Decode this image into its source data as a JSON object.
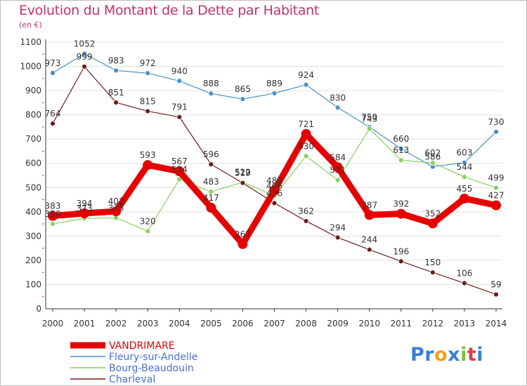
{
  "title": "Evolution du Montant de la Dette par Habitant",
  "unit": "(en €)",
  "logo": {
    "parts": [
      "Pr",
      "o",
      "x",
      "i",
      "t",
      "i"
    ],
    "colors": [
      "#3a7fd5",
      "#f0a020",
      "#3a7fd5",
      "#7cc242",
      "#e04040",
      "#3a7fd5"
    ]
  },
  "colors": {
    "axis": "#333333",
    "grid": "#e0e0e0",
    "title": "#c0336b"
  },
  "chart_data": {
    "type": "line",
    "title": "Evolution du Montant de la Dette par Habitant",
    "ylabel": "(en €)",
    "x": [
      "2000",
      "2001",
      "2002",
      "2003",
      "2004",
      "2005",
      "2006",
      "2007",
      "2008",
      "2009",
      "2010",
      "2011",
      "2012",
      "2013",
      "2014"
    ],
    "ylim": [
      0,
      1100
    ],
    "yticks": [
      0,
      100,
      200,
      300,
      400,
      500,
      600,
      700,
      800,
      900,
      1000,
      1100
    ],
    "grid": "horizontal",
    "legend": "bottom-left",
    "series": [
      {
        "name": "VANDRIMARE",
        "color": "#e60000",
        "width": 9,
        "values": [
          383,
          394,
          402,
          593,
          567,
          417,
          267,
          488,
          721,
          584,
          387,
          392,
          352,
          455,
          427
        ]
      },
      {
        "name": "Fleury-sur-Andelle",
        "color": "#4a90c8",
        "width": 1.2,
        "values": [
          973,
          1052,
          983,
          972,
          940,
          888,
          865,
          889,
          924,
          830,
          750,
          660,
          586,
          603,
          730
        ]
      },
      {
        "name": "Bourg-Beaudouin",
        "color": "#88d060",
        "width": 1.2,
        "values": [
          350,
          373,
          375,
          320,
          534,
          483,
          522,
          466,
          630,
          531,
          743,
          613,
          602,
          544,
          499
        ]
      },
      {
        "name": "Charleval",
        "color": "#6b1e1e",
        "width": 1.2,
        "values": [
          764,
          999,
          851,
          815,
          791,
          596,
          519,
          436,
          362,
          294,
          244,
          196,
          150,
          106,
          59
        ]
      }
    ]
  }
}
